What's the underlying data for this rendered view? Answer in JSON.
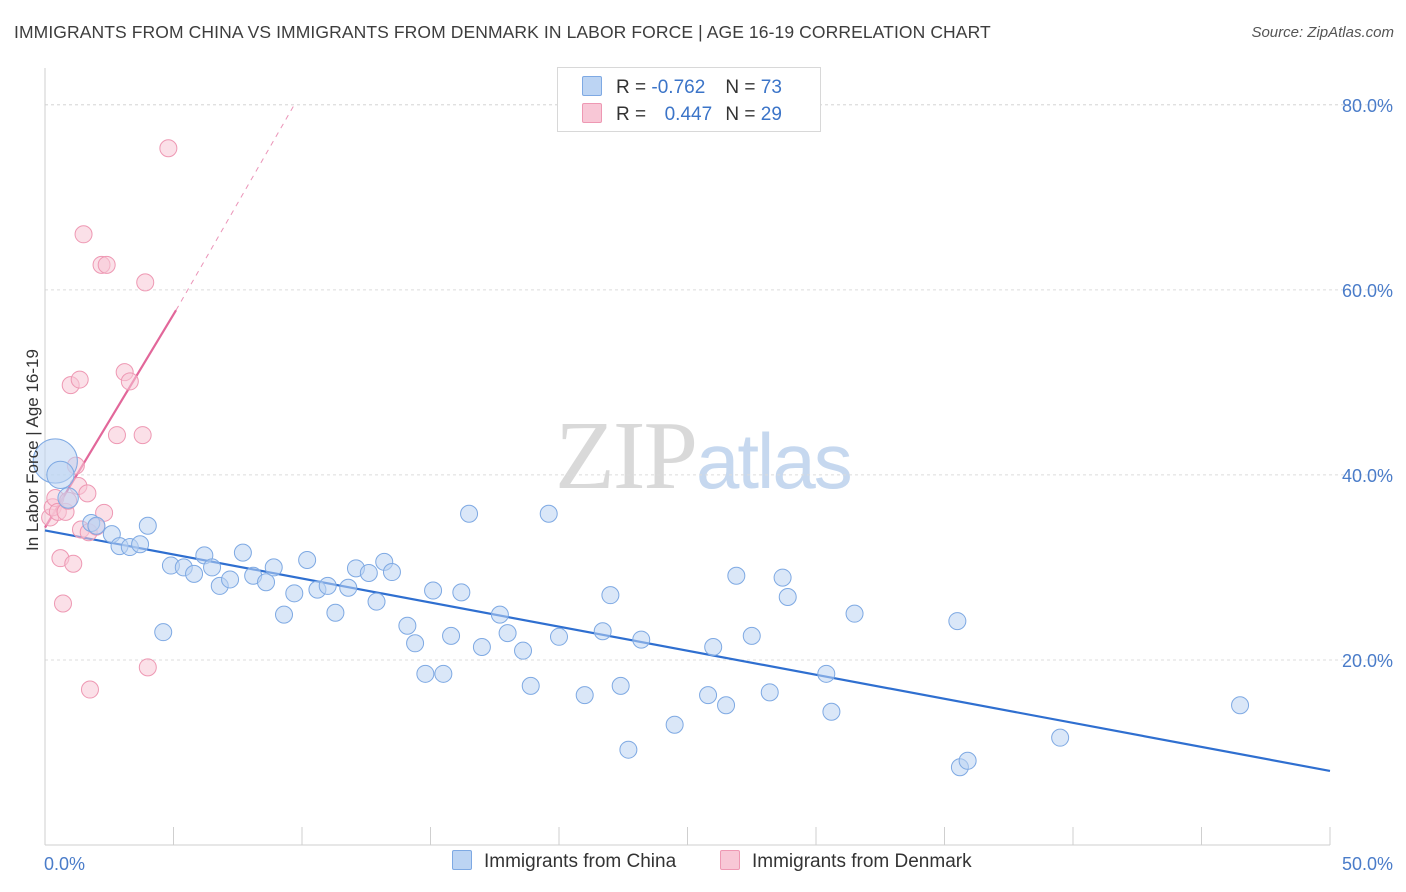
{
  "header": {
    "title": "IMMIGRANTS FROM CHINA VS IMMIGRANTS FROM DENMARK IN LABOR FORCE | AGE 16-19 CORRELATION CHART",
    "source": "Source: ZipAtlas.com"
  },
  "watermark": {
    "zip": "ZIP",
    "atlas": "atlas"
  },
  "legend": {
    "r_label": "R =",
    "n_label": "N =",
    "china": {
      "r": "-0.762",
      "n": "73"
    },
    "denmark": {
      "r": "0.447",
      "n": "29"
    }
  },
  "colors": {
    "china_fill": "#bcd4f3",
    "china_stroke": "#7ea9e3",
    "china_line": "#2f6fd0",
    "denmark_fill": "#f8c7d6",
    "denmark_stroke": "#ee98b3",
    "denmark_line": "#e2679a",
    "grid": "#dcdcdc",
    "tick_text": "#4a7cc9"
  },
  "chart_data": {
    "type": "scatter",
    "title": "IMMIGRANTS FROM CHINA VS IMMIGRANTS FROM DENMARK IN LABOR FORCE | AGE 16-19 CORRELATION CHART",
    "ylabel": "In Labor Force | Age 16-19",
    "xlabel": "",
    "xlim": [
      0,
      50
    ],
    "ylim": [
      0,
      83
    ],
    "x_tick_labels": [
      "0.0%",
      "50.0%"
    ],
    "y_ticks": [
      20,
      40,
      60,
      80
    ],
    "y_tick_labels": [
      "20.0%",
      "40.0%",
      "60.0%",
      "80.0%"
    ],
    "grid": true,
    "legend_placement": "bottom",
    "series": [
      {
        "name": "Immigrants from China",
        "trend": {
          "x": [
            0,
            50
          ],
          "y": [
            34.0,
            8.0
          ]
        },
        "points": [
          {
            "x": 0.4,
            "y": 41.5,
            "s": 2.6
          },
          {
            "x": 0.6,
            "y": 40.0,
            "s": 1.6
          },
          {
            "x": 0.9,
            "y": 37.5,
            "s": 1.2
          },
          {
            "x": 1.8,
            "y": 34.8,
            "s": 1.0
          },
          {
            "x": 2.0,
            "y": 34.5,
            "s": 1.0
          },
          {
            "x": 2.6,
            "y": 33.6,
            "s": 1.0
          },
          {
            "x": 2.9,
            "y": 32.3,
            "s": 1.0
          },
          {
            "x": 3.3,
            "y": 32.2,
            "s": 1.0
          },
          {
            "x": 3.7,
            "y": 32.5,
            "s": 1.0
          },
          {
            "x": 4.0,
            "y": 34.5,
            "s": 1.0
          },
          {
            "x": 4.6,
            "y": 23.0,
            "s": 1.0
          },
          {
            "x": 4.9,
            "y": 30.2,
            "s": 1.0
          },
          {
            "x": 5.4,
            "y": 30.0,
            "s": 1.0
          },
          {
            "x": 5.8,
            "y": 29.3,
            "s": 1.0
          },
          {
            "x": 6.2,
            "y": 31.3,
            "s": 1.0
          },
          {
            "x": 6.5,
            "y": 30.0,
            "s": 1.0
          },
          {
            "x": 6.8,
            "y": 28.0,
            "s": 1.0
          },
          {
            "x": 7.2,
            "y": 28.7,
            "s": 1.0
          },
          {
            "x": 7.7,
            "y": 31.6,
            "s": 1.0
          },
          {
            "x": 8.1,
            "y": 29.1,
            "s": 1.0
          },
          {
            "x": 8.6,
            "y": 28.4,
            "s": 1.0
          },
          {
            "x": 8.9,
            "y": 30.0,
            "s": 1.0
          },
          {
            "x": 9.3,
            "y": 24.9,
            "s": 1.0
          },
          {
            "x": 9.7,
            "y": 27.2,
            "s": 1.0
          },
          {
            "x": 10.2,
            "y": 30.8,
            "s": 1.0
          },
          {
            "x": 10.6,
            "y": 27.6,
            "s": 1.0
          },
          {
            "x": 11.0,
            "y": 28.0,
            "s": 1.0
          },
          {
            "x": 11.3,
            "y": 25.1,
            "s": 1.0
          },
          {
            "x": 11.8,
            "y": 27.8,
            "s": 1.0
          },
          {
            "x": 12.1,
            "y": 29.9,
            "s": 1.0
          },
          {
            "x": 12.6,
            "y": 29.4,
            "s": 1.0
          },
          {
            "x": 12.9,
            "y": 26.3,
            "s": 1.0
          },
          {
            "x": 13.2,
            "y": 30.6,
            "s": 1.0
          },
          {
            "x": 13.5,
            "y": 29.5,
            "s": 1.0
          },
          {
            "x": 14.1,
            "y": 23.7,
            "s": 1.0
          },
          {
            "x": 14.4,
            "y": 21.8,
            "s": 1.0
          },
          {
            "x": 14.8,
            "y": 18.5,
            "s": 1.0
          },
          {
            "x": 15.1,
            "y": 27.5,
            "s": 1.0
          },
          {
            "x": 15.5,
            "y": 18.5,
            "s": 1.0
          },
          {
            "x": 15.8,
            "y": 22.6,
            "s": 1.0
          },
          {
            "x": 16.2,
            "y": 27.3,
            "s": 1.0
          },
          {
            "x": 16.5,
            "y": 35.8,
            "s": 1.0
          },
          {
            "x": 17.0,
            "y": 21.4,
            "s": 1.0
          },
          {
            "x": 17.7,
            "y": 24.9,
            "s": 1.0
          },
          {
            "x": 18.0,
            "y": 22.9,
            "s": 1.0
          },
          {
            "x": 18.6,
            "y": 21.0,
            "s": 1.0
          },
          {
            "x": 18.9,
            "y": 17.2,
            "s": 1.0
          },
          {
            "x": 19.6,
            "y": 35.8,
            "s": 1.0
          },
          {
            "x": 20.0,
            "y": 22.5,
            "s": 1.0
          },
          {
            "x": 21.0,
            "y": 16.2,
            "s": 1.0
          },
          {
            "x": 21.7,
            "y": 23.1,
            "s": 1.0
          },
          {
            "x": 22.0,
            "y": 27.0,
            "s": 1.0
          },
          {
            "x": 22.4,
            "y": 17.2,
            "s": 1.0
          },
          {
            "x": 22.7,
            "y": 10.3,
            "s": 1.0
          },
          {
            "x": 23.2,
            "y": 22.2,
            "s": 1.0
          },
          {
            "x": 24.5,
            "y": 13.0,
            "s": 1.0
          },
          {
            "x": 25.8,
            "y": 16.2,
            "s": 1.0
          },
          {
            "x": 26.0,
            "y": 21.4,
            "s": 1.0
          },
          {
            "x": 26.5,
            "y": 15.1,
            "s": 1.0
          },
          {
            "x": 26.9,
            "y": 29.1,
            "s": 1.0
          },
          {
            "x": 27.5,
            "y": 22.6,
            "s": 1.0
          },
          {
            "x": 28.2,
            "y": 16.5,
            "s": 1.0
          },
          {
            "x": 28.7,
            "y": 28.9,
            "s": 1.0
          },
          {
            "x": 28.9,
            "y": 26.8,
            "s": 1.0
          },
          {
            "x": 30.4,
            "y": 18.5,
            "s": 1.0
          },
          {
            "x": 30.6,
            "y": 14.4,
            "s": 1.0
          },
          {
            "x": 31.5,
            "y": 25.0,
            "s": 1.0
          },
          {
            "x": 35.6,
            "y": 8.4,
            "s": 1.0
          },
          {
            "x": 35.9,
            "y": 9.1,
            "s": 1.0
          },
          {
            "x": 35.5,
            "y": 24.2,
            "s": 1.0
          },
          {
            "x": 39.5,
            "y": 11.6,
            "s": 1.0
          },
          {
            "x": 46.5,
            "y": 15.1,
            "s": 1.0
          },
          {
            "x": 4.0,
            "y": 36.0,
            "s": 0.0
          }
        ]
      },
      {
        "name": "Immigrants from Denmark",
        "trend": {
          "x": [
            0,
            5.1
          ],
          "y": [
            34.3,
            57.8
          ],
          "extension": {
            "x": [
              5.1,
              9.7
            ],
            "y": [
              57.8,
              80.0
            ]
          }
        },
        "points": [
          {
            "x": 0.2,
            "y": 35.4,
            "s": 1.0
          },
          {
            "x": 0.3,
            "y": 36.5,
            "s": 1.0
          },
          {
            "x": 0.4,
            "y": 37.5,
            "s": 1.0
          },
          {
            "x": 0.5,
            "y": 36.0,
            "s": 1.0
          },
          {
            "x": 0.6,
            "y": 31.0,
            "s": 1.0
          },
          {
            "x": 0.7,
            "y": 26.1,
            "s": 1.0
          },
          {
            "x": 0.8,
            "y": 36.0,
            "s": 1.0
          },
          {
            "x": 1.0,
            "y": 49.7,
            "s": 1.0
          },
          {
            "x": 1.1,
            "y": 30.4,
            "s": 1.0
          },
          {
            "x": 1.2,
            "y": 41.0,
            "s": 1.0
          },
          {
            "x": 1.3,
            "y": 38.8,
            "s": 1.0
          },
          {
            "x": 1.35,
            "y": 50.3,
            "s": 1.0
          },
          {
            "x": 1.4,
            "y": 34.1,
            "s": 1.0
          },
          {
            "x": 1.5,
            "y": 66.0,
            "s": 1.0
          },
          {
            "x": 1.7,
            "y": 33.8,
            "s": 1.0
          },
          {
            "x": 1.65,
            "y": 38.0,
            "s": 1.0
          },
          {
            "x": 1.75,
            "y": 16.8,
            "s": 1.0
          },
          {
            "x": 2.0,
            "y": 34.4,
            "s": 1.0
          },
          {
            "x": 2.2,
            "y": 62.7,
            "s": 1.0
          },
          {
            "x": 2.3,
            "y": 35.9,
            "s": 1.0
          },
          {
            "x": 2.4,
            "y": 62.7,
            "s": 1.0
          },
          {
            "x": 2.8,
            "y": 44.3,
            "s": 1.0
          },
          {
            "x": 3.1,
            "y": 51.1,
            "s": 1.0
          },
          {
            "x": 3.3,
            "y": 50.1,
            "s": 1.0
          },
          {
            "x": 3.8,
            "y": 44.3,
            "s": 1.0
          },
          {
            "x": 3.9,
            "y": 60.8,
            "s": 1.0
          },
          {
            "x": 4.0,
            "y": 19.2,
            "s": 1.0
          },
          {
            "x": 4.8,
            "y": 75.3,
            "s": 1.0
          },
          {
            "x": 0.9,
            "y": 37.2,
            "s": 1.0
          }
        ]
      }
    ]
  },
  "bottom_legend": {
    "china": "Immigrants from China",
    "denmark": "Immigrants from Denmark"
  }
}
